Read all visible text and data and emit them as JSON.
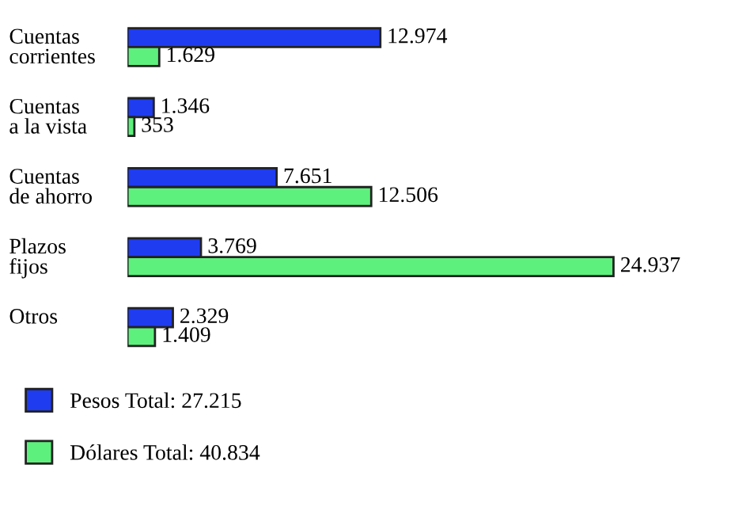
{
  "chart_data": {
    "type": "bar",
    "orientation": "horizontal",
    "categories": [
      "Cuentas\ncorrientes",
      "Cuentas\na la vista",
      "Cuentas\nde ahorro",
      "Plazos\nfijos",
      "Otros"
    ],
    "series": [
      {
        "name": "Pesos Total: 27.215",
        "color": "#1f3cf0",
        "values": [
          12974,
          1346,
          7651,
          3769,
          2329
        ],
        "value_labels": [
          "12.974",
          "1.346",
          "7.651",
          "3.769",
          "2.329"
        ]
      },
      {
        "name": "Dólares Total: 40.834",
        "color": "#5ef07c",
        "values": [
          1629,
          353,
          12506,
          24937,
          1409
        ],
        "value_labels": [
          "1.629",
          "353",
          "12.506",
          "24.937",
          "1.409"
        ]
      }
    ],
    "legend": "bottom left"
  }
}
